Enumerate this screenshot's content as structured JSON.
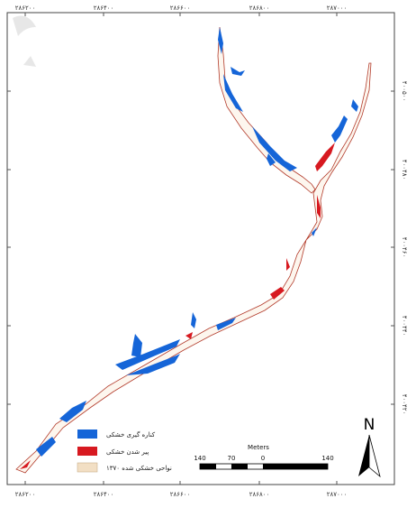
{
  "x_ticks": [
    "۲۸۶۲۰۰",
    "۲۸۶۴۰۰",
    "۲۸۶۶۰۰",
    "۲۸۶۸۰۰",
    "۲۸۷۰۰۰"
  ],
  "y_ticks": [
    "۴۰۰۵۰۰",
    "۴۰۰۴۸۰",
    "۴۰۰۴۶۰",
    "۴۰۰۴۴۰",
    "۴۰۰۴۲۰"
  ],
  "legend": [
    {
      "label": "کناره گیری خشکی",
      "color": "#1565d8"
    },
    {
      "label": "پیر شدن خشکی",
      "color": "#d71920"
    },
    {
      "label": "نواحی خشکی شده ۱۳۷۰",
      "color": "#f2dfc4"
    }
  ],
  "scale": {
    "title": "Meters",
    "labels": [
      "140",
      "70",
      "0",
      "140"
    ]
  },
  "north_label": "N",
  "colors": {
    "erosion": "#1565d8",
    "accretion": "#d71920",
    "land": "#f2dfc4",
    "outline": "#b23a2a"
  }
}
